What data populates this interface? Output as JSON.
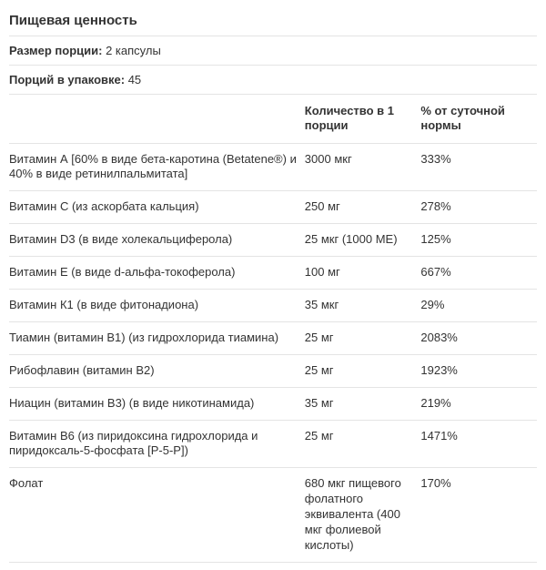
{
  "colors": {
    "text": "#333333",
    "border": "#e4e4e4",
    "background": "#ffffff"
  },
  "typography": {
    "title_fontsize": 15,
    "body_fontsize": 13,
    "header_weight": 700
  },
  "header": {
    "title": "Пищевая ценность",
    "serving_size_label": "Размер порции:",
    "serving_size_value": "2 капсулы",
    "servings_per_container_label": "Порций в упаковке:",
    "servings_per_container_value": "45"
  },
  "table": {
    "type": "table",
    "columns": [
      "",
      "Количество в 1 порции",
      "% от суточной нормы"
    ],
    "column_widths_pct": [
      56,
      22,
      22
    ],
    "rows": [
      {
        "name": "Витамин А [60% в виде бета-каротина (Betatene®) и 40% в виде ретинилпальмитата]",
        "amount": "3000 мкг",
        "dv": "333%"
      },
      {
        "name": "Витамин С (из аскорбата кальция)",
        "amount": "250 мг",
        "dv": "278%"
      },
      {
        "name": "Витамин D3 (в виде холекальциферола)",
        "amount": "25 мкг (1000 МЕ)",
        "dv": "125%"
      },
      {
        "name": "Витамин Е (в виде d-альфа-токоферола)",
        "amount": "100 мг",
        "dv": "667%"
      },
      {
        "name": "Витамин К1 (в виде фитонадиона)",
        "amount": "35 мкг",
        "dv": "29%"
      },
      {
        "name": "Тиамин (витамин В1) (из гидрохлорида тиамина)",
        "amount": "25 мг",
        "dv": "2083%"
      },
      {
        "name": "Рибофлавин (витамин В2)",
        "amount": "25 мг",
        "dv": "1923%"
      },
      {
        "name": "Ниацин (витамин В3) (в виде никотинамида)",
        "amount": "35 мг",
        "dv": "219%"
      },
      {
        "name": "Витамин В6 (из пиридоксина гидрохлорида и пиридоксаль-5-фосфата [P-5-P])",
        "amount": "25 мг",
        "dv": "1471%"
      },
      {
        "name": "Фолат",
        "amount": "680 мкг пищевого фолатного эквивалента (400 мкг фолиевой кислоты)",
        "dv": "170%"
      }
    ]
  }
}
